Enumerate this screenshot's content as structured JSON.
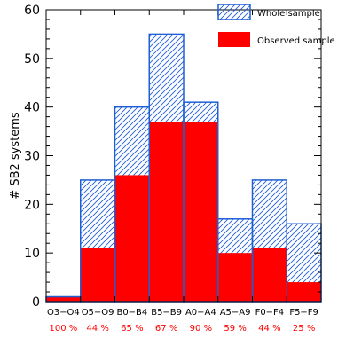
{
  "chart_data": {
    "type": "bar",
    "categories": [
      "O3−O4",
      "O5−O9",
      "B0−B4",
      "B5−B9",
      "A0−A4",
      "A5−A9",
      "F0−F4",
      "F5−F9"
    ],
    "percent_labels": [
      "100 %",
      "44 %",
      "65 %",
      "67 %",
      "90 %",
      "59 %",
      "44 %",
      "25 %"
    ],
    "series": [
      {
        "name": "Whole sample",
        "values": [
          1,
          25,
          40,
          55,
          41,
          17,
          25,
          16
        ],
        "style": "hatched",
        "color": "#1f5fd6"
      },
      {
        "name": "Observed sample",
        "values": [
          1,
          11,
          26,
          37,
          37,
          10,
          11,
          4
        ],
        "style": "filled",
        "color": "#ff0000"
      }
    ],
    "ylabel": "# SB2 systems",
    "xlabel": "",
    "title": "",
    "ylim": [
      0,
      60
    ],
    "yticks_major": [
      0,
      10,
      20,
      30,
      40,
      50,
      60
    ],
    "yticks_minor_step": 2,
    "legend_position": "top-right",
    "percent_label_color": "#ff0000"
  }
}
